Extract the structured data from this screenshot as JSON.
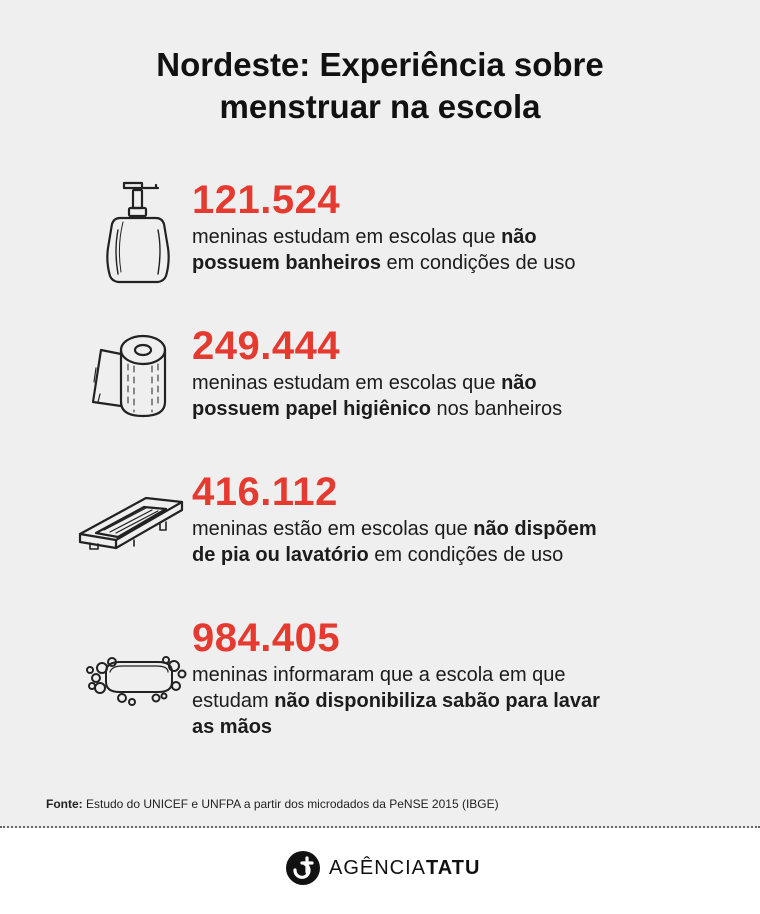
{
  "title_line1": "Nordeste: Experiência sobre",
  "title_line2": "menstruar na escola",
  "stats": [
    {
      "icon": "soap-dispenser-icon",
      "number": "121.524",
      "line1_pre": "meninas estudam em escolas que ",
      "line1_bold": "não",
      "line2_bold": "possuem banheiros",
      "line2_post": " em condições de uso"
    },
    {
      "icon": "toilet-paper-icon",
      "number": "249.444",
      "line1_pre": "meninas estudam em escolas que ",
      "line1_bold": "não",
      "line2_bold": "possuem papel higiênico",
      "line2_post": " nos banheiros"
    },
    {
      "icon": "soap-dish-icon",
      "number": "416.112",
      "line1_pre": "meninas estão em escolas que ",
      "line1_bold": "não dispõem",
      "line2_bold": "de pia ou lavatório",
      "line2_post": " em condições de uso"
    },
    {
      "icon": "soap-bar-icon",
      "number": "984.405",
      "line1_pre": "meninas informaram que a escola em que",
      "line2_pre": "estudam ",
      "line2_bold": "não disponibiliza sabão para lavar",
      "line3_bold": "as mãos"
    }
  ],
  "source_label": "Fonte:",
  "source_text": " Estudo do UNICEF e UNFPA a partir dos microdados da PeNSE 2015 (IBGE)",
  "brand_light": "AGÊNCIA",
  "brand_bold": "TATU",
  "colors": {
    "accent": "#e53a2f",
    "background": "#efefef",
    "footer": "#ffffff"
  }
}
